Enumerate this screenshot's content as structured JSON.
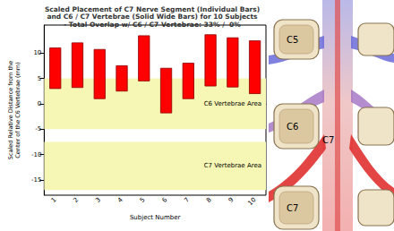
{
  "chart_data": {
    "type": "floating_bar",
    "title": "Scaled Placement of C7 Nerve Segment (Individual Bars)\nand C6 / C7 Vertebrae (Solid Wide Bars) for 10 Subjects\n- Total Overlap w/ C6 / C7 Vertebrae: 33% /  0%",
    "x_label": "Subject Number",
    "y_label": "Scaled Relative Distance from the\nCenter of the C6 Vertebrae (mm)",
    "categories": [
      "1",
      "2",
      "3",
      "4",
      "5",
      "6",
      "7",
      "8",
      "9",
      "10"
    ],
    "values": [
      [
        3,
        11
      ],
      [
        3.2,
        12
      ],
      [
        1,
        10.7
      ],
      [
        2.5,
        7.5
      ],
      [
        4.5,
        13.4
      ],
      [
        -1.8,
        7
      ],
      [
        1,
        8
      ],
      [
        3.5,
        13.6
      ],
      [
        3.3,
        13
      ],
      [
        2,
        12.4
      ]
    ],
    "color": "#ff0000",
    "regions": [
      {
        "label": "C6 Vertebrae Area",
        "range": [
          -5,
          5
        ],
        "color": "#f7f7b5"
      },
      {
        "label": "C7 Vertebrae Area",
        "range": [
          -17,
          -7.5
        ],
        "color": "#f7f7b5"
      }
    ],
    "ylim": [
      -18,
      15.5
    ],
    "yticks": [
      -15,
      -10,
      -5,
      0,
      5,
      10
    ],
    "grid": false
  },
  "illustration": {
    "vertebrae": [
      "C5",
      "C6",
      "C7"
    ],
    "nerve": "C7"
  }
}
